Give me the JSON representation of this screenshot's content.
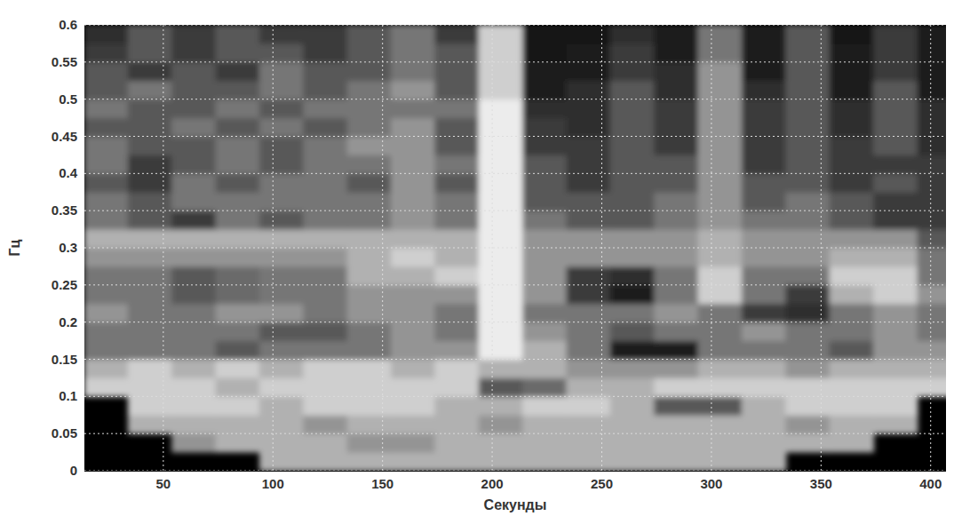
{
  "chart_data": {
    "type": "heatmap",
    "xlabel": "Секунды",
    "ylabel": "Гц",
    "x": [
      24,
      44,
      64,
      84,
      104,
      124,
      144,
      164,
      184,
      204,
      224,
      244,
      264,
      284,
      304,
      324,
      344,
      364,
      384,
      404
    ],
    "y": [
      0.0125,
      0.0375,
      0.0625,
      0.0875,
      0.1125,
      0.1375,
      0.1625,
      0.1875,
      0.2125,
      0.2375,
      0.2625,
      0.2875,
      0.3125,
      0.3375,
      0.3625,
      0.3875,
      0.4125,
      0.4375,
      0.4625,
      0.4875,
      0.5125,
      0.5375,
      0.5625,
      0.5875
    ],
    "cells": [
      [
        null,
        null,
        null,
        null,
        3,
        3,
        3,
        3,
        3,
        3,
        3,
        3,
        3,
        3,
        3,
        3,
        null,
        null,
        null,
        null
      ],
      [
        null,
        null,
        2.5,
        3,
        3,
        3,
        2.5,
        2.5,
        3,
        3,
        3,
        3,
        3,
        3,
        3,
        3,
        3,
        3,
        null,
        null
      ],
      [
        null,
        3,
        3,
        3,
        3,
        2.5,
        3,
        3,
        3,
        2.5,
        3,
        3,
        3,
        3,
        3,
        3,
        2.5,
        3,
        3,
        null
      ],
      [
        null,
        3.5,
        3.5,
        3.5,
        3,
        3.5,
        3.5,
        3.5,
        3,
        3,
        3.5,
        3.5,
        3,
        1.5,
        1.5,
        3,
        3.5,
        3.5,
        3.5,
        null
      ],
      [
        3.5,
        3.5,
        3.5,
        3,
        3.5,
        3.5,
        3.5,
        3.5,
        3.5,
        1.5,
        1.8,
        3,
        3,
        3.5,
        3.5,
        3.5,
        3.5,
        3.5,
        3.5,
        3.5
      ],
      [
        3,
        3.5,
        3,
        3.5,
        3,
        3.5,
        3.5,
        3,
        3.5,
        3,
        3,
        2.5,
        2.5,
        2.5,
        3,
        3,
        2.5,
        3,
        3,
        3
      ],
      [
        2,
        2,
        2,
        1.5,
        2,
        2,
        2,
        2.5,
        2.5,
        4,
        3,
        2,
        0.5,
        0.5,
        2,
        2,
        2,
        1.5,
        2.5,
        2.5
      ],
      [
        2,
        2,
        2,
        2,
        1.5,
        1.5,
        2,
        2.5,
        2,
        4,
        2.5,
        2,
        1.5,
        2,
        2,
        2.5,
        2,
        2,
        2.5,
        2
      ],
      [
        2.5,
        2,
        2,
        2.5,
        2.5,
        2,
        2.5,
        2.5,
        2,
        4,
        2,
        2,
        2,
        2.5,
        2,
        1,
        0.8,
        2,
        2.5,
        2
      ],
      [
        2,
        2,
        1.5,
        1.8,
        2,
        2,
        2.5,
        2.5,
        2.5,
        4,
        2.5,
        1,
        0.5,
        2,
        3.5,
        2,
        1,
        3,
        3.5,
        2.5
      ],
      [
        2,
        2,
        1.5,
        1.8,
        2,
        2,
        3,
        3,
        3.5,
        4,
        2.5,
        1,
        0.8,
        2,
        3.5,
        2,
        2,
        3.5,
        3.5,
        2
      ],
      [
        2.5,
        2.5,
        2.5,
        2.5,
        2.5,
        2.5,
        3,
        3.5,
        3,
        4,
        2.5,
        2.5,
        2.5,
        2.5,
        3,
        2.5,
        2.5,
        3,
        3,
        2
      ],
      [
        3,
        3,
        3,
        3,
        3,
        3,
        3,
        3,
        3,
        4,
        2.5,
        2.5,
        2.5,
        2.5,
        3,
        2.5,
        2.5,
        2.5,
        2.5,
        1.5
      ],
      [
        2,
        1.5,
        1,
        2,
        1.5,
        2,
        2,
        2.5,
        2,
        4,
        2,
        1.5,
        1.5,
        2,
        2.5,
        2,
        2,
        1.5,
        1,
        1
      ],
      [
        2,
        1.5,
        2,
        2,
        2,
        2,
        2,
        2.5,
        2,
        4,
        1.5,
        1.5,
        1.5,
        2,
        2.5,
        1.5,
        2,
        1.5,
        1,
        1
      ],
      [
        1.5,
        1,
        2,
        1.5,
        2,
        2,
        1.5,
        2.5,
        1.5,
        4,
        1.5,
        1,
        1.5,
        1.5,
        2.5,
        1.5,
        1.5,
        1,
        1.5,
        1
      ],
      [
        2,
        1,
        1.5,
        2,
        1.5,
        2,
        2,
        2.5,
        2,
        4,
        1.5,
        1,
        1.5,
        1.5,
        2.5,
        1,
        1.5,
        1,
        1,
        1
      ],
      [
        2,
        1.5,
        1.5,
        2,
        1.5,
        2,
        2.5,
        2.5,
        1.5,
        4,
        1,
        1,
        1.5,
        1,
        2.5,
        1,
        1.5,
        1,
        1.5,
        0.8
      ],
      [
        1.5,
        1.5,
        2,
        1.5,
        2,
        1.5,
        2,
        2.5,
        1.5,
        4,
        1,
        0.8,
        1.5,
        1,
        2.5,
        1,
        1.5,
        0.8,
        1.5,
        0.8
      ],
      [
        2,
        1.5,
        1.5,
        2,
        1.5,
        2,
        2,
        2,
        2,
        4,
        0.8,
        0.8,
        1.5,
        1,
        2.5,
        1,
        1.5,
        0.8,
        1.5,
        0.8
      ],
      [
        1.5,
        2,
        1.5,
        1.5,
        2,
        1.5,
        2,
        2.5,
        1.5,
        3.5,
        0.5,
        0.8,
        1.5,
        0.8,
        2.5,
        0.8,
        1.5,
        0.5,
        1.5,
        0.5
      ],
      [
        1.5,
        1,
        1.5,
        1,
        2,
        1.5,
        1.5,
        2,
        1.5,
        3.5,
        0.5,
        0.5,
        1,
        0.8,
        2.5,
        0.5,
        1.5,
        0.5,
        1,
        0.5
      ],
      [
        1,
        1.5,
        1,
        1.5,
        1.5,
        1,
        1.5,
        2,
        1.5,
        3.5,
        0.3,
        0.5,
        1,
        0.5,
        2,
        0.5,
        1.5,
        0.5,
        1,
        0.5
      ],
      [
        0.8,
        1.5,
        1,
        1.5,
        1,
        1,
        1.5,
        2,
        1,
        3.5,
        0.3,
        0.3,
        0.8,
        0.5,
        2,
        0.5,
        1.5,
        0.3,
        1,
        0.5
      ]
    ],
    "zlim": [
      0,
      4
    ],
    "xlim": [
      14,
      407
    ],
    "ylim": [
      0,
      0.6
    ],
    "xticks": [
      50,
      100,
      150,
      200,
      250,
      300,
      350,
      400
    ],
    "yticks": [
      0,
      0.05,
      0.1,
      0.15,
      0.2,
      0.25,
      0.3,
      0.35,
      0.4,
      0.45,
      0.5,
      0.55,
      0.6
    ],
    "grid": true
  }
}
